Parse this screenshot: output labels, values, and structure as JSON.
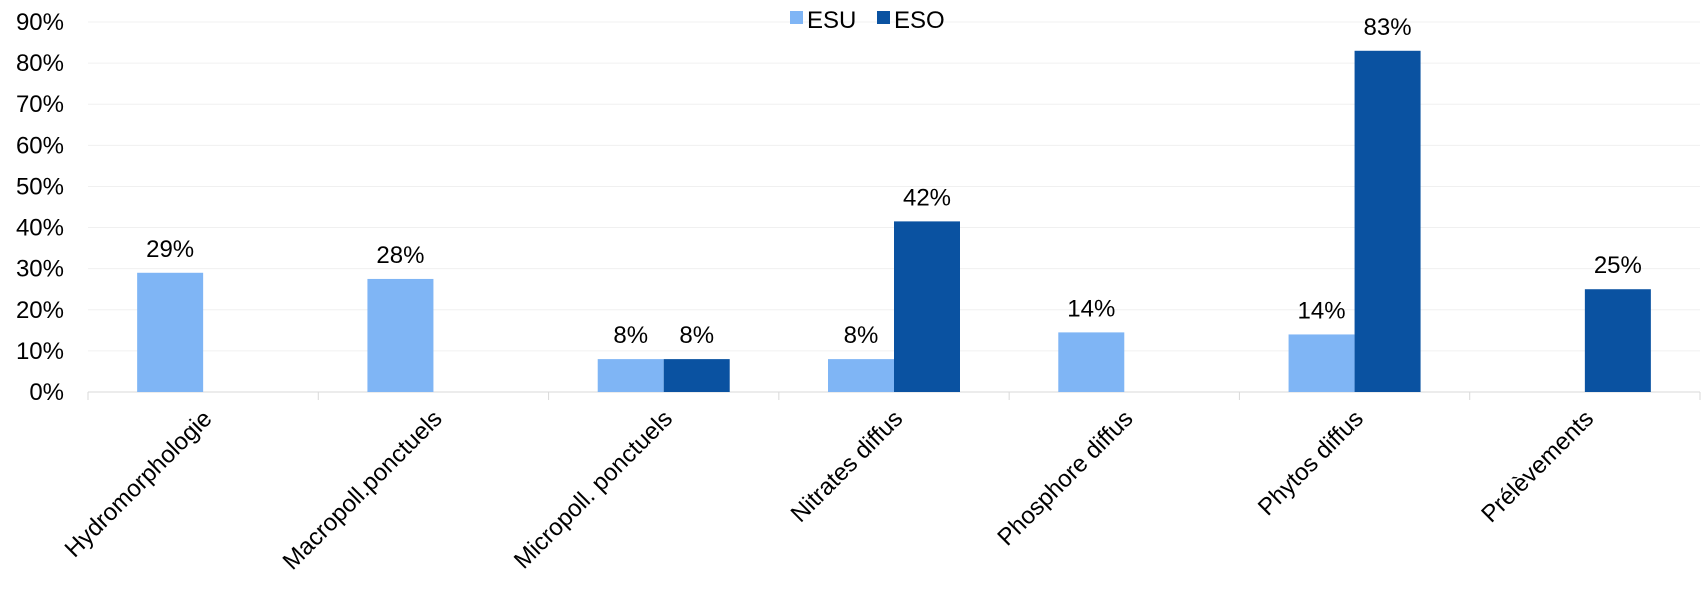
{
  "chart_data": {
    "type": "bar",
    "title": "",
    "xlabel": "",
    "ylabel": "",
    "categories": [
      "Hydromorphologie",
      "Macropoll.ponctuels",
      "Micropoll. ponctuels",
      "Nitrates diffus",
      "Phosphore diffus",
      "Phytos diffus",
      "Prélèvements"
    ],
    "series": [
      {
        "name": "ESU",
        "color": "#7fb5f5",
        "values": [
          0.29,
          0.275,
          0.08,
          0.08,
          0.145,
          0.14,
          null
        ],
        "labels": [
          "29%",
          "28%",
          "8%",
          "8%",
          "14%",
          "14%",
          null
        ]
      },
      {
        "name": "ESO",
        "color": "#0a52a1",
        "values": [
          null,
          null,
          0.08,
          0.415,
          null,
          0.83,
          0.25
        ],
        "labels": [
          null,
          null,
          "8%",
          "42%",
          null,
          "83%",
          "25%"
        ]
      }
    ],
    "ylim": [
      0,
      0.9
    ],
    "yticks": [
      0,
      0.1,
      0.2,
      0.3,
      0.4,
      0.5,
      0.6,
      0.7,
      0.8,
      0.9
    ],
    "ytick_labels": [
      "0%",
      "10%",
      "20%",
      "30%",
      "40%",
      "50%",
      "60%",
      "70%",
      "80%",
      "90%"
    ],
    "grid": true,
    "legend_position": "top-center"
  }
}
